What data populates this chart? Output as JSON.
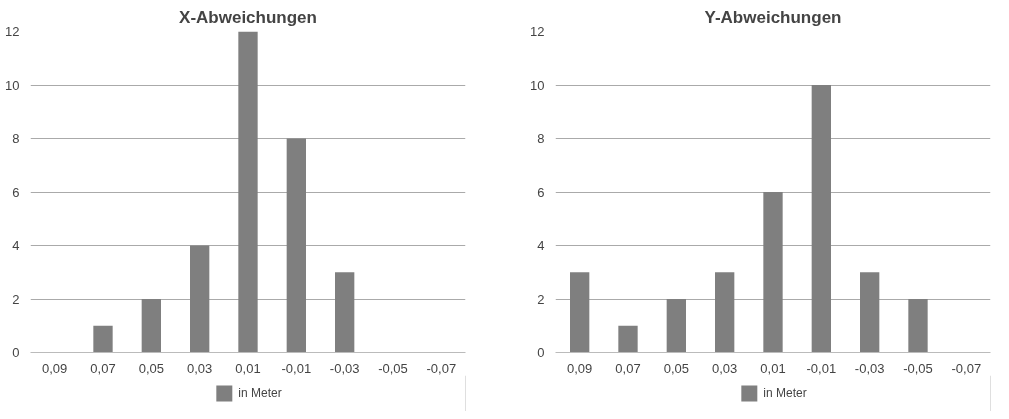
{
  "chart_data": [
    {
      "type": "bar",
      "title": "X-Abweichungen",
      "categories": [
        "0,09",
        "0,07",
        "0,05",
        "0,03",
        "0,01",
        "-0,01",
        "-0,03",
        "-0,05",
        "-0,07"
      ],
      "series": [
        {
          "name": "in Meter",
          "color": "#7f7f7f",
          "values": [
            0,
            1,
            2,
            4,
            12,
            8,
            3,
            0,
            0
          ]
        }
      ],
      "ylim": [
        0,
        12
      ],
      "yticks": [
        0,
        2,
        4,
        6,
        8,
        10,
        12
      ],
      "grid": "y",
      "legend": "bottom"
    },
    {
      "type": "bar",
      "title": "Y-Abweichungen",
      "categories": [
        "0,09",
        "0,07",
        "0,05",
        "0,03",
        "0,01",
        "-0,01",
        "-0,03",
        "-0,05",
        "-0,07"
      ],
      "series": [
        {
          "name": "in Meter",
          "color": "#7f7f7f",
          "values": [
            3,
            1,
            2,
            3,
            6,
            10,
            3,
            2,
            0
          ]
        }
      ],
      "ylim": [
        0,
        12
      ],
      "yticks": [
        0,
        2,
        4,
        6,
        8,
        10,
        12
      ],
      "grid": "y",
      "legend": "bottom"
    }
  ]
}
